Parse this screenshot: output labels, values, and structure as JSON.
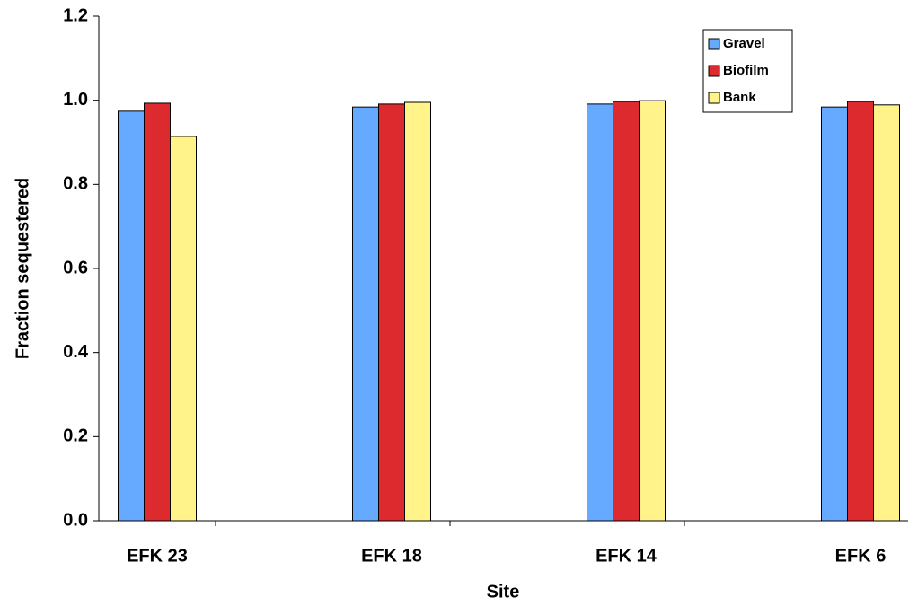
{
  "chart_data": {
    "type": "bar",
    "x_label": "Site",
    "y_label": "Fraction sequestered",
    "categories": [
      "EFK 23",
      "EFK 18",
      "EFK 14",
      "EFK 6"
    ],
    "series": [
      {
        "name": "Gravel",
        "color": "#66aaff",
        "values": [
          0.974,
          0.984,
          0.991,
          0.984
        ]
      },
      {
        "name": "Biofilm",
        "color": "#dd2a2f",
        "values": [
          0.993,
          0.991,
          0.997,
          0.997
        ]
      },
      {
        "name": "Bank",
        "color": "#fff38a",
        "values": [
          0.914,
          0.995,
          0.999,
          0.989
        ]
      }
    ],
    "ylim": [
      0,
      1.2
    ],
    "yticks": [
      {
        "value": 0,
        "label": "0.0"
      },
      0.2,
      0.4,
      0.6,
      0.8,
      {
        "value": 1,
        "label": "1.0"
      },
      1.2
    ],
    "legend": "upper right"
  }
}
